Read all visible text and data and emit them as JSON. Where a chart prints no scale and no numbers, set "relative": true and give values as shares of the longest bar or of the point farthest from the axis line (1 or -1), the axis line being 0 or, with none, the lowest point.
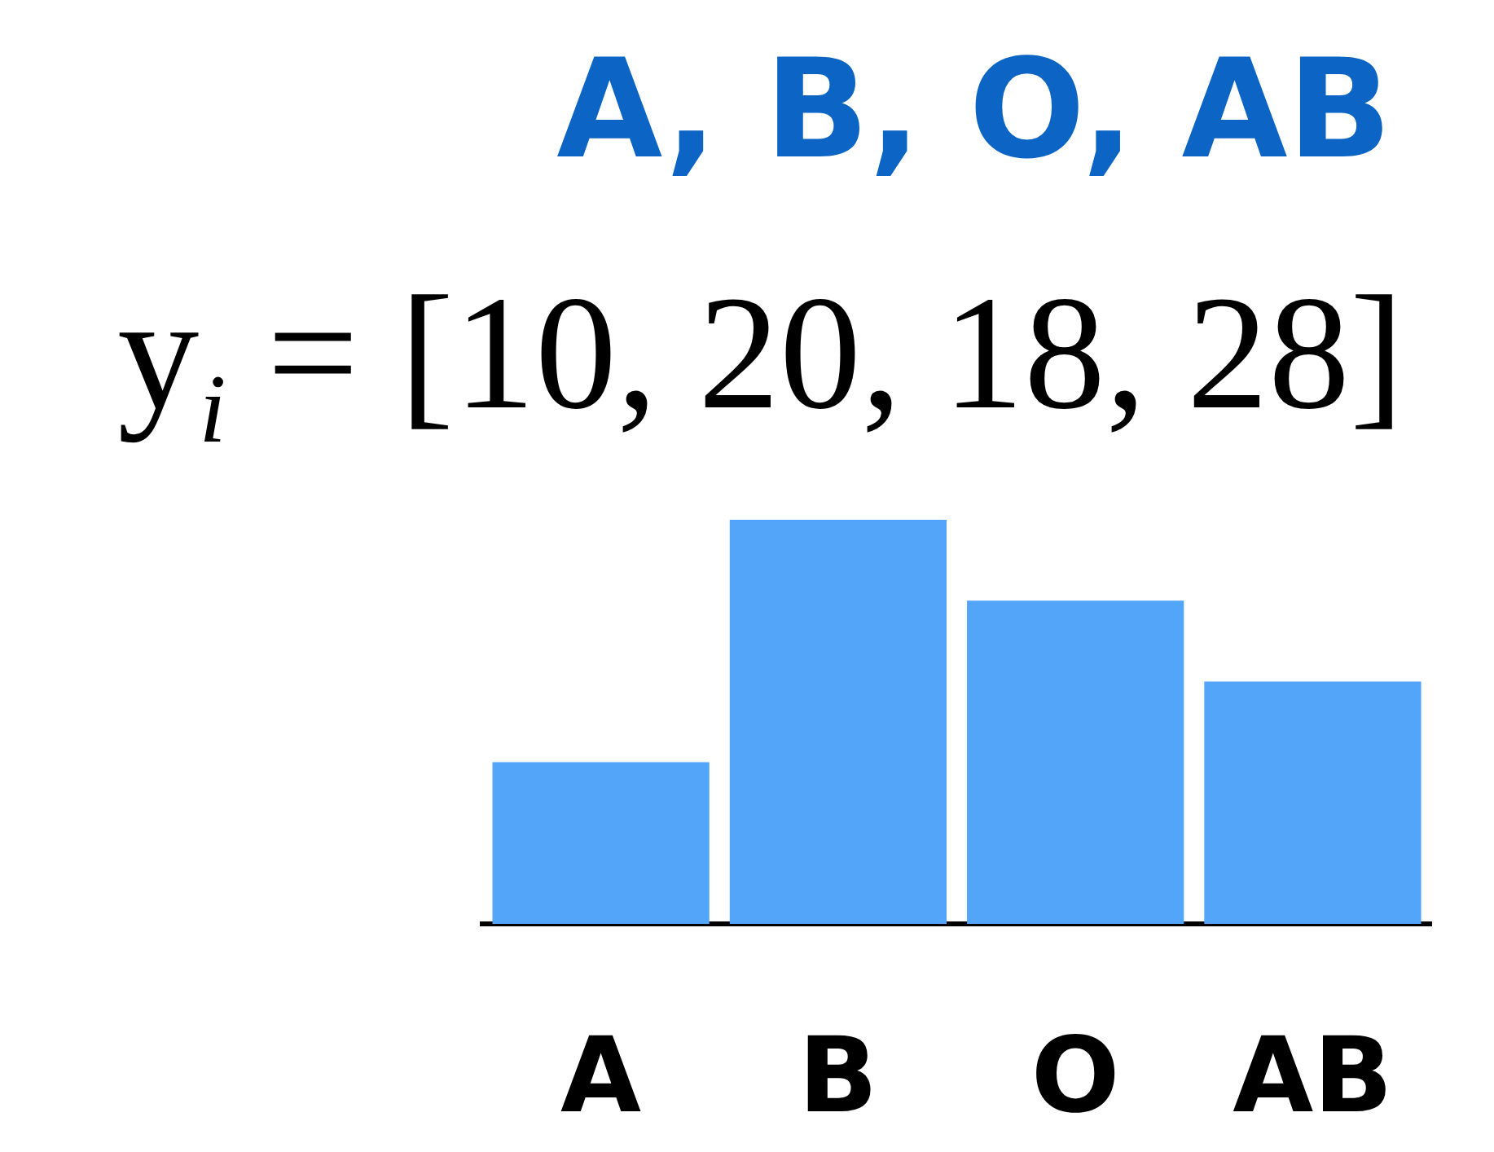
{
  "chart_data": {
    "type": "bar",
    "title": "A, B, O, AB",
    "subtitle": "y$_{i}$ = [10, 20, 18, 28]",
    "categories": [
      "A",
      "B",
      "O",
      "AB"
    ],
    "values": [
      0.4,
      1,
      0.8,
      0.6
    ],
    "color": "#52a5f9",
    "relative": true
  }
}
